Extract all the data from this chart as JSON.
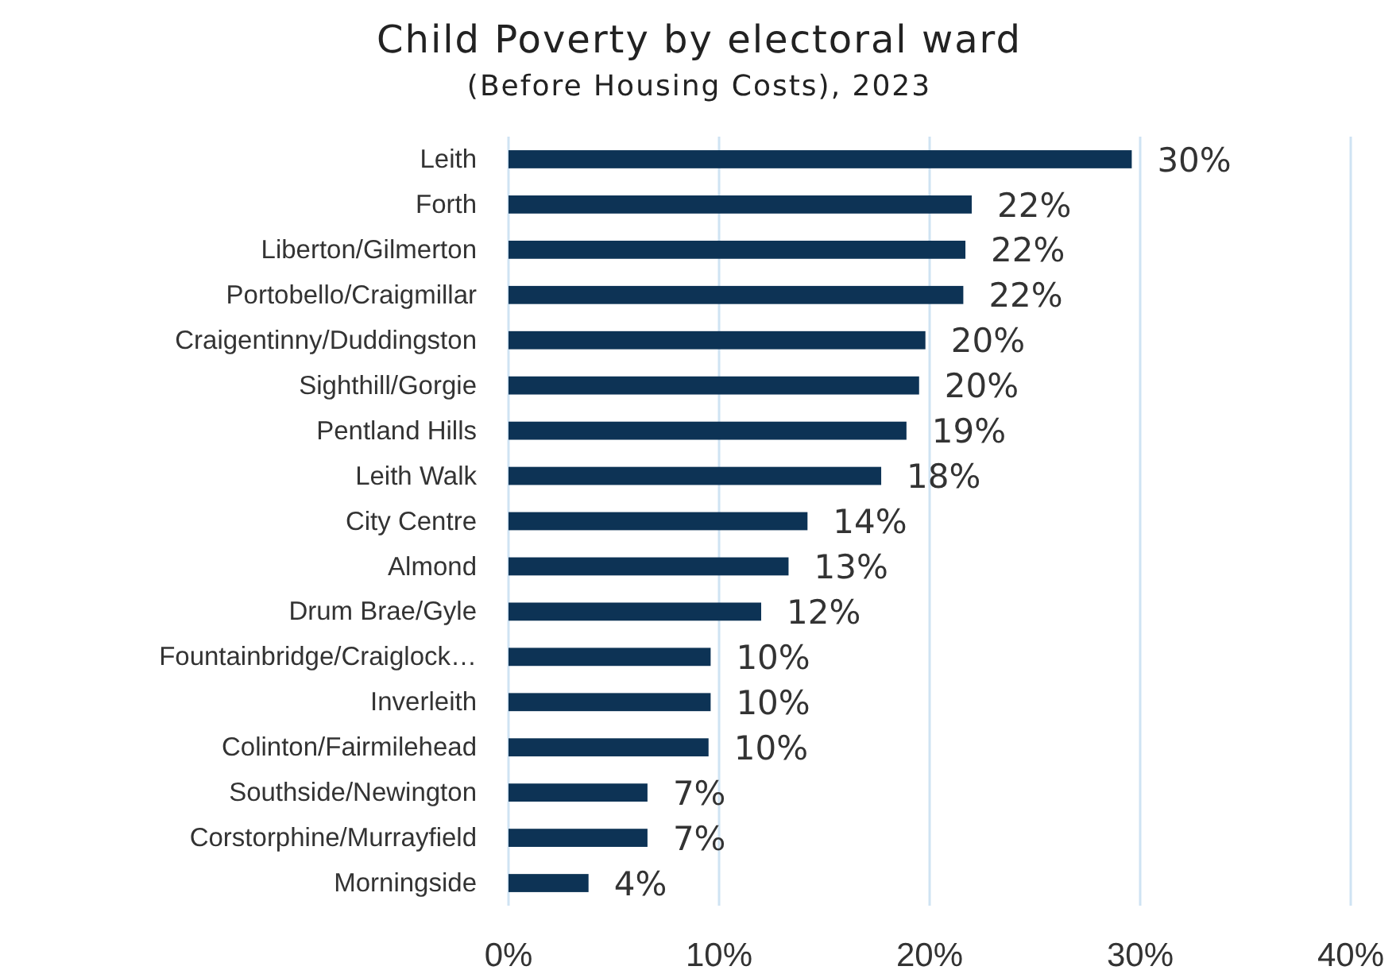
{
  "chart_data": {
    "type": "bar",
    "orientation": "horizontal",
    "title": "Child Poverty by electoral ward",
    "subtitle": "(Before Housing Costs), 2023",
    "categories": [
      "Leith",
      "Forth",
      "Liberton/Gilmerton",
      "Portobello/Craigmillar",
      "Craigentinny/Duddingston",
      "Sighthill/Gorgie",
      "Pentland Hills",
      "Leith Walk",
      "City Centre",
      "Almond",
      "Drum Brae/Gyle",
      "Fountainbridge/Craiglock…",
      "Inverleith",
      "Colinton/Fairmilehead",
      "Southside/Newington",
      "Corstorphine/Murrayfield",
      "Morningside"
    ],
    "values": [
      29.6,
      22.0,
      21.7,
      21.6,
      19.8,
      19.5,
      18.9,
      17.7,
      14.2,
      13.3,
      12.0,
      9.6,
      9.6,
      9.5,
      6.6,
      6.6,
      3.8
    ],
    "value_labels": [
      "30%",
      "22%",
      "22%",
      "22%",
      "20%",
      "20%",
      "19%",
      "18%",
      "14%",
      "13%",
      "12%",
      "10%",
      "10%",
      "10%",
      "7%",
      "7%",
      "4%"
    ],
    "color": "#0d3355",
    "xlim": [
      0,
      40
    ],
    "xticks": [
      {
        "value": 0,
        "label": "0%"
      },
      {
        "value": 10,
        "label": "10%"
      },
      {
        "value": 20,
        "label": "20%"
      },
      {
        "value": 30,
        "label": "30%"
      },
      {
        "value": 40,
        "label": "40%"
      }
    ],
    "grid": "x"
  }
}
